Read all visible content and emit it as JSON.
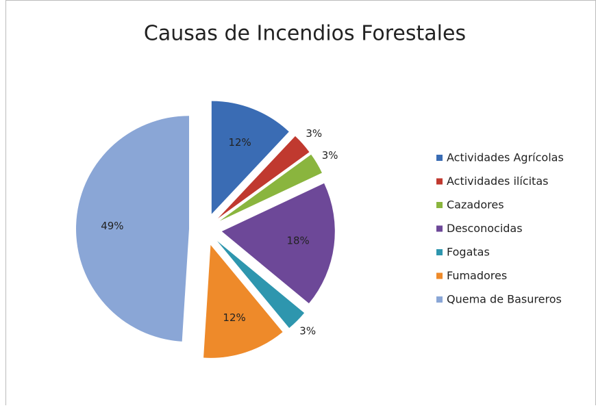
{
  "chart_data": {
    "type": "pie",
    "title": "Causas de Incendios Forestales",
    "categories": [
      "Actividades Agrícolas",
      "Actividades ilícitas",
      "Cazadores",
      "Desconocidas",
      "Fogatas",
      "Fumadores",
      "Quema de Basureros"
    ],
    "values": [
      12,
      3,
      3,
      18,
      3,
      12,
      49
    ],
    "value_labels": [
      "12%",
      "3%",
      "3%",
      "18%",
      "3%",
      "12%",
      "49%"
    ],
    "colors": [
      "#3a6cb4",
      "#c0392f",
      "#8ab53e",
      "#6d4898",
      "#2e96ae",
      "#ee8a2a",
      "#8aa6d6"
    ],
    "legend": "right"
  }
}
